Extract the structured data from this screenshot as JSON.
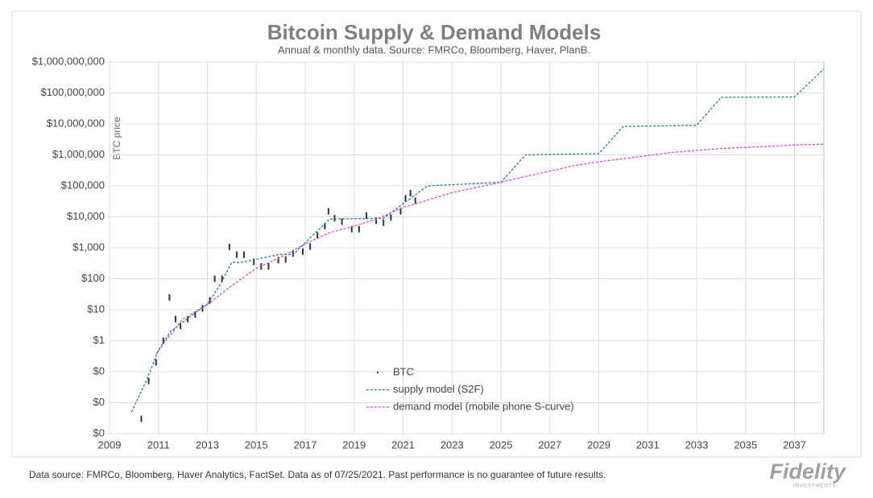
{
  "chart_data": {
    "type": "line",
    "title": "Bitcoin Supply & Demand Models",
    "subtitle": "Annual & monthly data.  Source: FMRCo, Bloomberg, Haver, PlanB.",
    "y_label": "BTC price",
    "log_y": true,
    "grid": true,
    "legend": "bottom-center",
    "xlim": [
      2009,
      2038.2
    ],
    "xticks": [
      2009,
      2011,
      2013,
      2015,
      2017,
      2019,
      2021,
      2023,
      2025,
      2027,
      2029,
      2031,
      2033,
      2035,
      2037
    ],
    "ylim": [
      0.001,
      1000000000
    ],
    "yticks": [
      {
        "value": 0.001,
        "label": "$0"
      },
      {
        "value": 0.01,
        "label": "$0"
      },
      {
        "value": 0.1,
        "label": "$0"
      },
      {
        "value": 1,
        "label": "$1"
      },
      {
        "value": 10,
        "label": "$10"
      },
      {
        "value": 100,
        "label": "$100"
      },
      {
        "value": 1000,
        "label": "$1,000"
      },
      {
        "value": 10000,
        "label": "$10,000"
      },
      {
        "value": 100000,
        "label": "$100,000"
      },
      {
        "value": 1000000,
        "label": "$1,000,000"
      },
      {
        "value": 10000000,
        "label": "$10,000,000"
      },
      {
        "value": 100000000,
        "label": "$100,000,000"
      },
      {
        "value": 1000000000,
        "label": "$1,000,000,000"
      }
    ],
    "series": [
      {
        "name": "BTC",
        "color": "#333333",
        "mark": "tick",
        "x": [
          2010.3,
          2010.6,
          2010.9,
          2011.2,
          2011.45,
          2011.7,
          2011.9,
          2012.2,
          2012.5,
          2012.8,
          2013.1,
          2013.3,
          2013.6,
          2013.9,
          2014.2,
          2014.5,
          2014.9,
          2015.2,
          2015.5,
          2015.9,
          2016.2,
          2016.5,
          2016.9,
          2017.2,
          2017.5,
          2017.8,
          2017.95,
          2018.2,
          2018.5,
          2018.9,
          2019.2,
          2019.5,
          2019.9,
          2020.2,
          2020.5,
          2020.9,
          2021.1,
          2021.3,
          2021.5
        ],
        "values": [
          0.003,
          0.05,
          0.2,
          1,
          25,
          5,
          3,
          5,
          7,
          11,
          20,
          100,
          100,
          1070,
          600,
          600,
          350,
          250,
          250,
          400,
          420,
          650,
          750,
          1100,
          2500,
          5000,
          15000,
          9000,
          7000,
          4000,
          4000,
          11000,
          7500,
          6500,
          9500,
          15000,
          40000,
          58000,
          33000
        ]
      },
      {
        "name": "supply model (S2F)",
        "color": "#1f7a99",
        "mark": "dashed",
        "x": [
          2009.9,
          2010.5,
          2011.0,
          2011.5,
          2012.0,
          2012.5,
          2013.0,
          2013.5,
          2014.0,
          2014.3,
          2016.0,
          2016.5,
          2018.0,
          2020.2,
          2022.0,
          2025.0,
          2026.0,
          2029.0,
          2030.0,
          2033.0,
          2034.0,
          2037.0,
          2038.2
        ],
        "values": [
          0.005,
          0.05,
          0.5,
          2,
          4,
          8,
          15,
          60,
          340,
          330,
          620,
          600,
          8500,
          9000,
          100000,
          130000,
          1000000,
          1100000,
          8300000,
          9000000,
          72000000,
          74000000,
          590000000
        ]
      },
      {
        "name": "demand model (mobile phone S-curve)",
        "color": "#e040e0",
        "mark": "dashed",
        "x": [
          2010.9,
          2011.3,
          2012,
          2013,
          2014,
          2015,
          2016,
          2017,
          2018,
          2019,
          2020,
          2021,
          2022,
          2023,
          2024,
          2025,
          2026,
          2027,
          2028,
          2029,
          2030,
          2031,
          2032,
          2033,
          2034,
          2035,
          2036,
          2037,
          2038.2
        ],
        "values": [
          0.37,
          1,
          5,
          15,
          60,
          220,
          500,
          1350,
          3100,
          5000,
          9000,
          20000,
          35000,
          60000,
          90000,
          130000,
          200000,
          300000,
          450000,
          600000,
          750000,
          950000,
          1200000,
          1400000,
          1600000,
          1750000,
          1900000,
          2100000,
          2200000
        ]
      }
    ]
  },
  "footer": {
    "note": "Data source: FMRCo, Bloomberg, Haver Analytics, FactSet. Data as of 07/25/2021. Past performance is no guarantee of future results.",
    "logo": "Fidelity",
    "logo_sub": "INVESTMENTS"
  }
}
